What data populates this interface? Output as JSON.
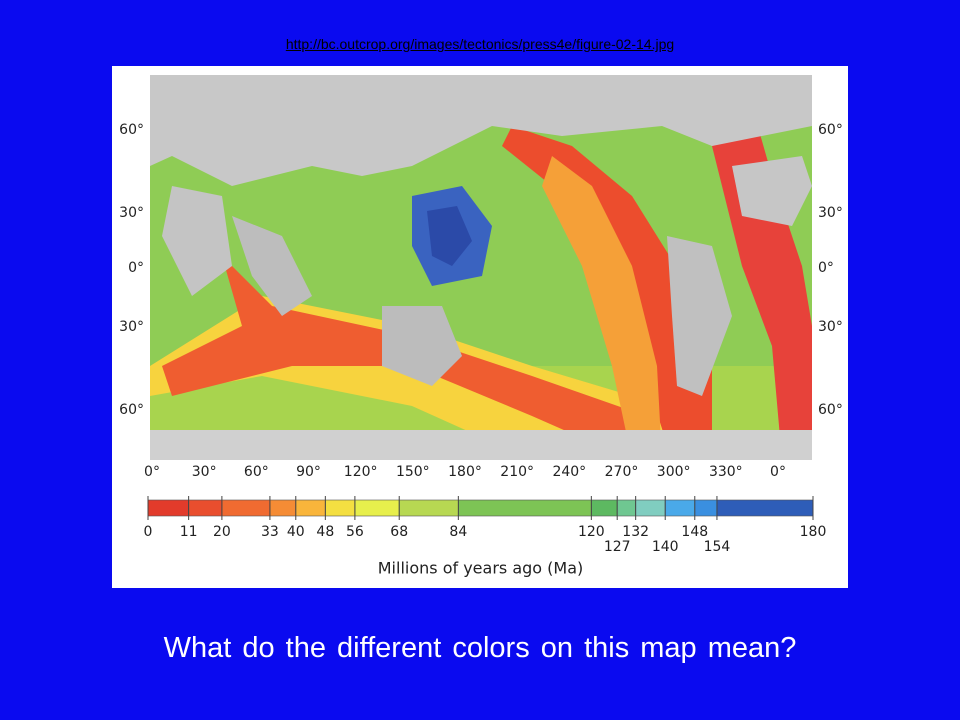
{
  "link": "http://bc.outcrop.org/images/tectonics/press4e/figure-02-14.jpg",
  "map": {
    "lat_left": [
      "60°",
      "30°",
      "0°",
      "30°",
      "60°"
    ],
    "lat_right": [
      "60°",
      "30°",
      "0°",
      "30°",
      "60°"
    ],
    "lon": [
      "0°",
      "30°",
      "60°",
      "90°",
      "120°",
      "150°",
      "180°",
      "210°",
      "240°",
      "270°",
      "300°",
      "330°",
      "0°"
    ]
  },
  "scale": {
    "ticks": [
      0,
      11,
      20,
      33,
      40,
      48,
      56,
      68,
      84,
      120,
      127,
      132,
      140,
      148,
      154,
      180
    ],
    "colors": [
      "#e23b2b",
      "#e94e2e",
      "#f06b31",
      "#f58c35",
      "#f9b53b",
      "#f4df41",
      "#e7ef4c",
      "#b7d852",
      "#7dc455",
      "#5db961",
      "#6fc791",
      "#80cdc0",
      "#4aa9e9",
      "#3a8fe0",
      "#2e5db8"
    ],
    "label": "Millions of years ago (Ma)"
  },
  "question": "What do the different colors on this map mean?"
}
